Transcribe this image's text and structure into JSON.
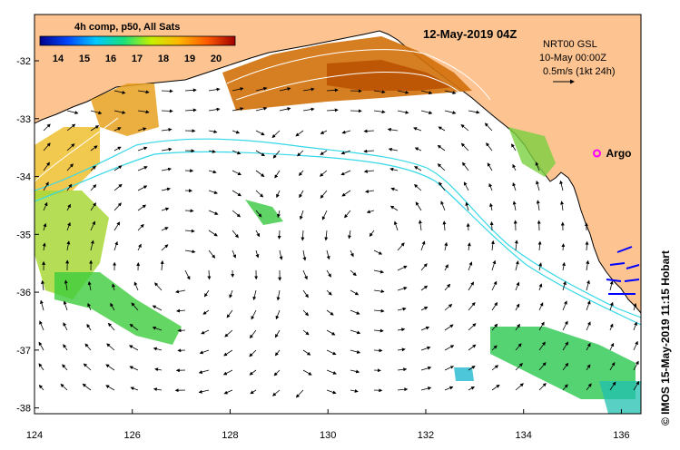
{
  "header": {
    "colorbar_title": "4h comp, p50, All Sats",
    "date_title": "12-May-2019 04Z"
  },
  "colorbar": {
    "ticks": [
      "14",
      "15",
      "16",
      "17",
      "18",
      "19",
      "20"
    ],
    "colors": [
      "#00008b",
      "#0047ff",
      "#00c8ff",
      "#19e07a",
      "#c8f000",
      "#ffb400",
      "#ff5a00",
      "#a00000"
    ]
  },
  "current_info": {
    "line1": "NRT00 GSL",
    "line2": "10-May 00:00Z",
    "line3": "0.5m/s (1kt 24h)"
  },
  "argo": {
    "label": "Argo",
    "lon": 135.5,
    "lat": -33.6,
    "color": "#ff00ff"
  },
  "axes": {
    "x_ticks": [
      "124",
      "126",
      "128",
      "130",
      "132",
      "134",
      "136"
    ],
    "y_ticks": [
      "-32",
      "-33",
      "-34",
      "-35",
      "-36",
      "-37",
      "-38"
    ],
    "lon_range": [
      124,
      136.4
    ],
    "lat_range": [
      -38.1,
      -31.2
    ]
  },
  "credit": "© IMOS 15-May-2019 11:15 Hobart",
  "colors": {
    "land": "#fdc492",
    "sea": "#ffffff",
    "isobath": "#35d8e8",
    "eddy_contour": "#ffffff"
  }
}
